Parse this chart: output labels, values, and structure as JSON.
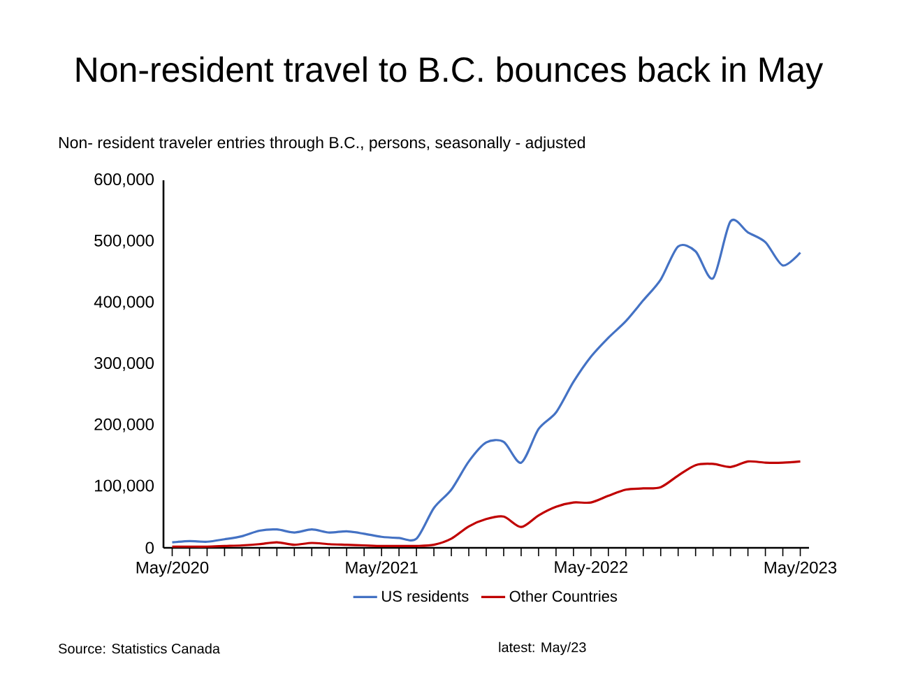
{
  "chart_data": {
    "type": "line",
    "title": "Non-resident travel to B.C. bounces back in May",
    "subtitle": "Non- resident traveler entries through B.C., persons, seasonally - adjusted",
    "categories": [
      "May/2020",
      null,
      null,
      null,
      null,
      null,
      null,
      null,
      null,
      null,
      null,
      null,
      "May/2021",
      null,
      null,
      null,
      null,
      null,
      null,
      null,
      null,
      null,
      null,
      null,
      "May-2022",
      null,
      null,
      null,
      null,
      null,
      null,
      null,
      null,
      null,
      null,
      null,
      "May/2023"
    ],
    "series": [
      {
        "name": "US residents",
        "color": "#4472c4",
        "values": [
          9000,
          11000,
          10000,
          14000,
          19000,
          28000,
          30000,
          25000,
          30000,
          25000,
          27000,
          23000,
          18000,
          16000,
          15000,
          65000,
          95000,
          141000,
          172000,
          173000,
          139000,
          194000,
          221000,
          271000,
          312000,
          343000,
          370000,
          404000,
          438000,
          492000,
          484000,
          440000,
          533000,
          515000,
          499000,
          461000,
          482000
        ]
      },
      {
        "name": "Other Countries",
        "color": "#c00000",
        "values": [
          2000,
          2000,
          2000,
          3000,
          4000,
          6000,
          9000,
          5000,
          8000,
          6000,
          5000,
          4000,
          3000,
          3000,
          3000,
          5000,
          15000,
          35000,
          47000,
          51000,
          34000,
          53000,
          67000,
          74000,
          74000,
          85000,
          95000,
          97000,
          99000,
          118000,
          135000,
          137000,
          132000,
          141000,
          139000,
          139000,
          141000
        ]
      }
    ],
    "ylim": [
      0,
      600000
    ],
    "yticks": [
      0,
      {
        "value": 100000,
        "label": "100,000"
      },
      {
        "value": 200000,
        "label": "200,000"
      },
      {
        "value": 300000,
        "label": "300,000"
      },
      {
        "value": 400000,
        "label": "400,000"
      },
      {
        "value": 500000,
        "label": "500,000"
      },
      {
        "value": 600000,
        "label": "600,000"
      }
    ],
    "legend": "bottom",
    "annotations": [
      "Source: Statistics Canada",
      "latest: May/23"
    ]
  }
}
